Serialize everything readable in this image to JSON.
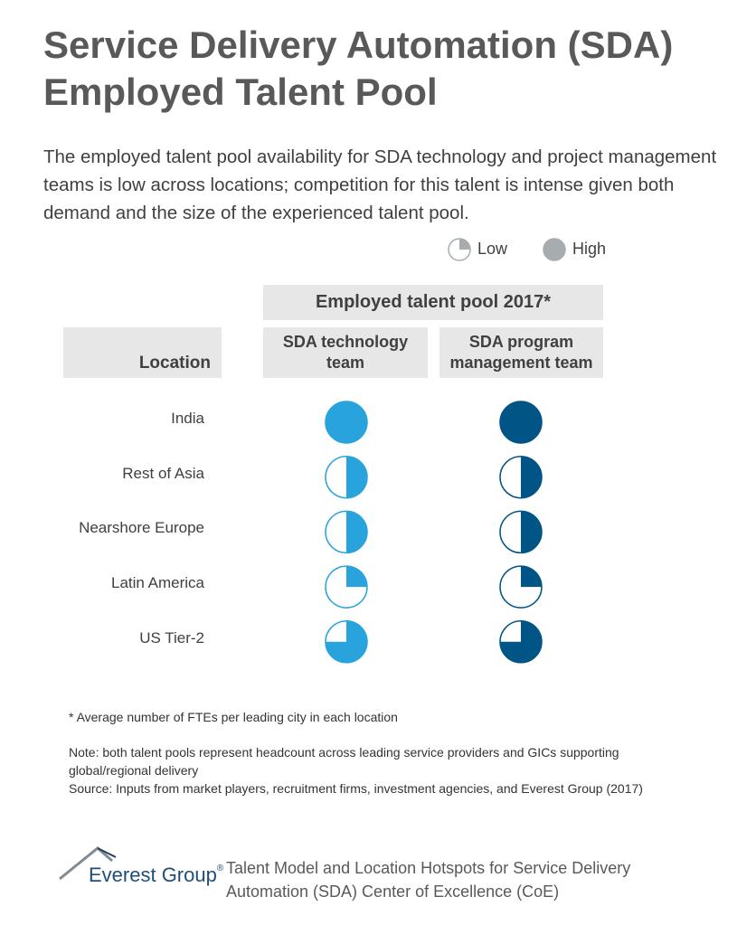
{
  "header": {
    "title_line1": "Service Delivery Automation (SDA)",
    "title_line2": "Employed Talent Pool",
    "subtitle": "The employed talent pool availability for SDA technology and project management teams is low across locations; competition for this talent is intense given both demand and the size of the experienced talent pool."
  },
  "legend": [
    {
      "label": "Low",
      "level": 0.25
    },
    {
      "label": "High",
      "level": 1
    }
  ],
  "legend_color": "#a6acaf",
  "table": {
    "group_header": "Employed talent pool 2017*",
    "location_header": "Location",
    "columns": [
      {
        "label": "SDA technology team",
        "color": "#29a3dc"
      },
      {
        "label": "SDA program management team",
        "color": "#005586"
      }
    ],
    "rows": [
      {
        "location": "India",
        "levels": [
          1,
          1
        ]
      },
      {
        "location": "Rest of Asia",
        "levels": [
          0.5,
          0.5
        ]
      },
      {
        "location": "Nearshore Europe",
        "levels": [
          0.5,
          0.5
        ]
      },
      {
        "location": "Latin America",
        "levels": [
          0.25,
          0.25
        ]
      },
      {
        "location": "US Tier-2",
        "levels": [
          0.75,
          0.75
        ]
      }
    ]
  },
  "notes": {
    "footnote": "* Average number of FTEs per leading city in each location",
    "note": "Note: both talent pools represent headcount across leading service providers and GICs supporting global/regional delivery",
    "source": "Source: Inputs from market players, recruitment firms, investment agencies, and Everest Group (2017)"
  },
  "footer": {
    "logo_name": "Everest Group",
    "logo_mark": "®",
    "text": "Talent Model and Location Hotspots for Service Delivery Automation (SDA) Center of Excellence (CoE)"
  }
}
